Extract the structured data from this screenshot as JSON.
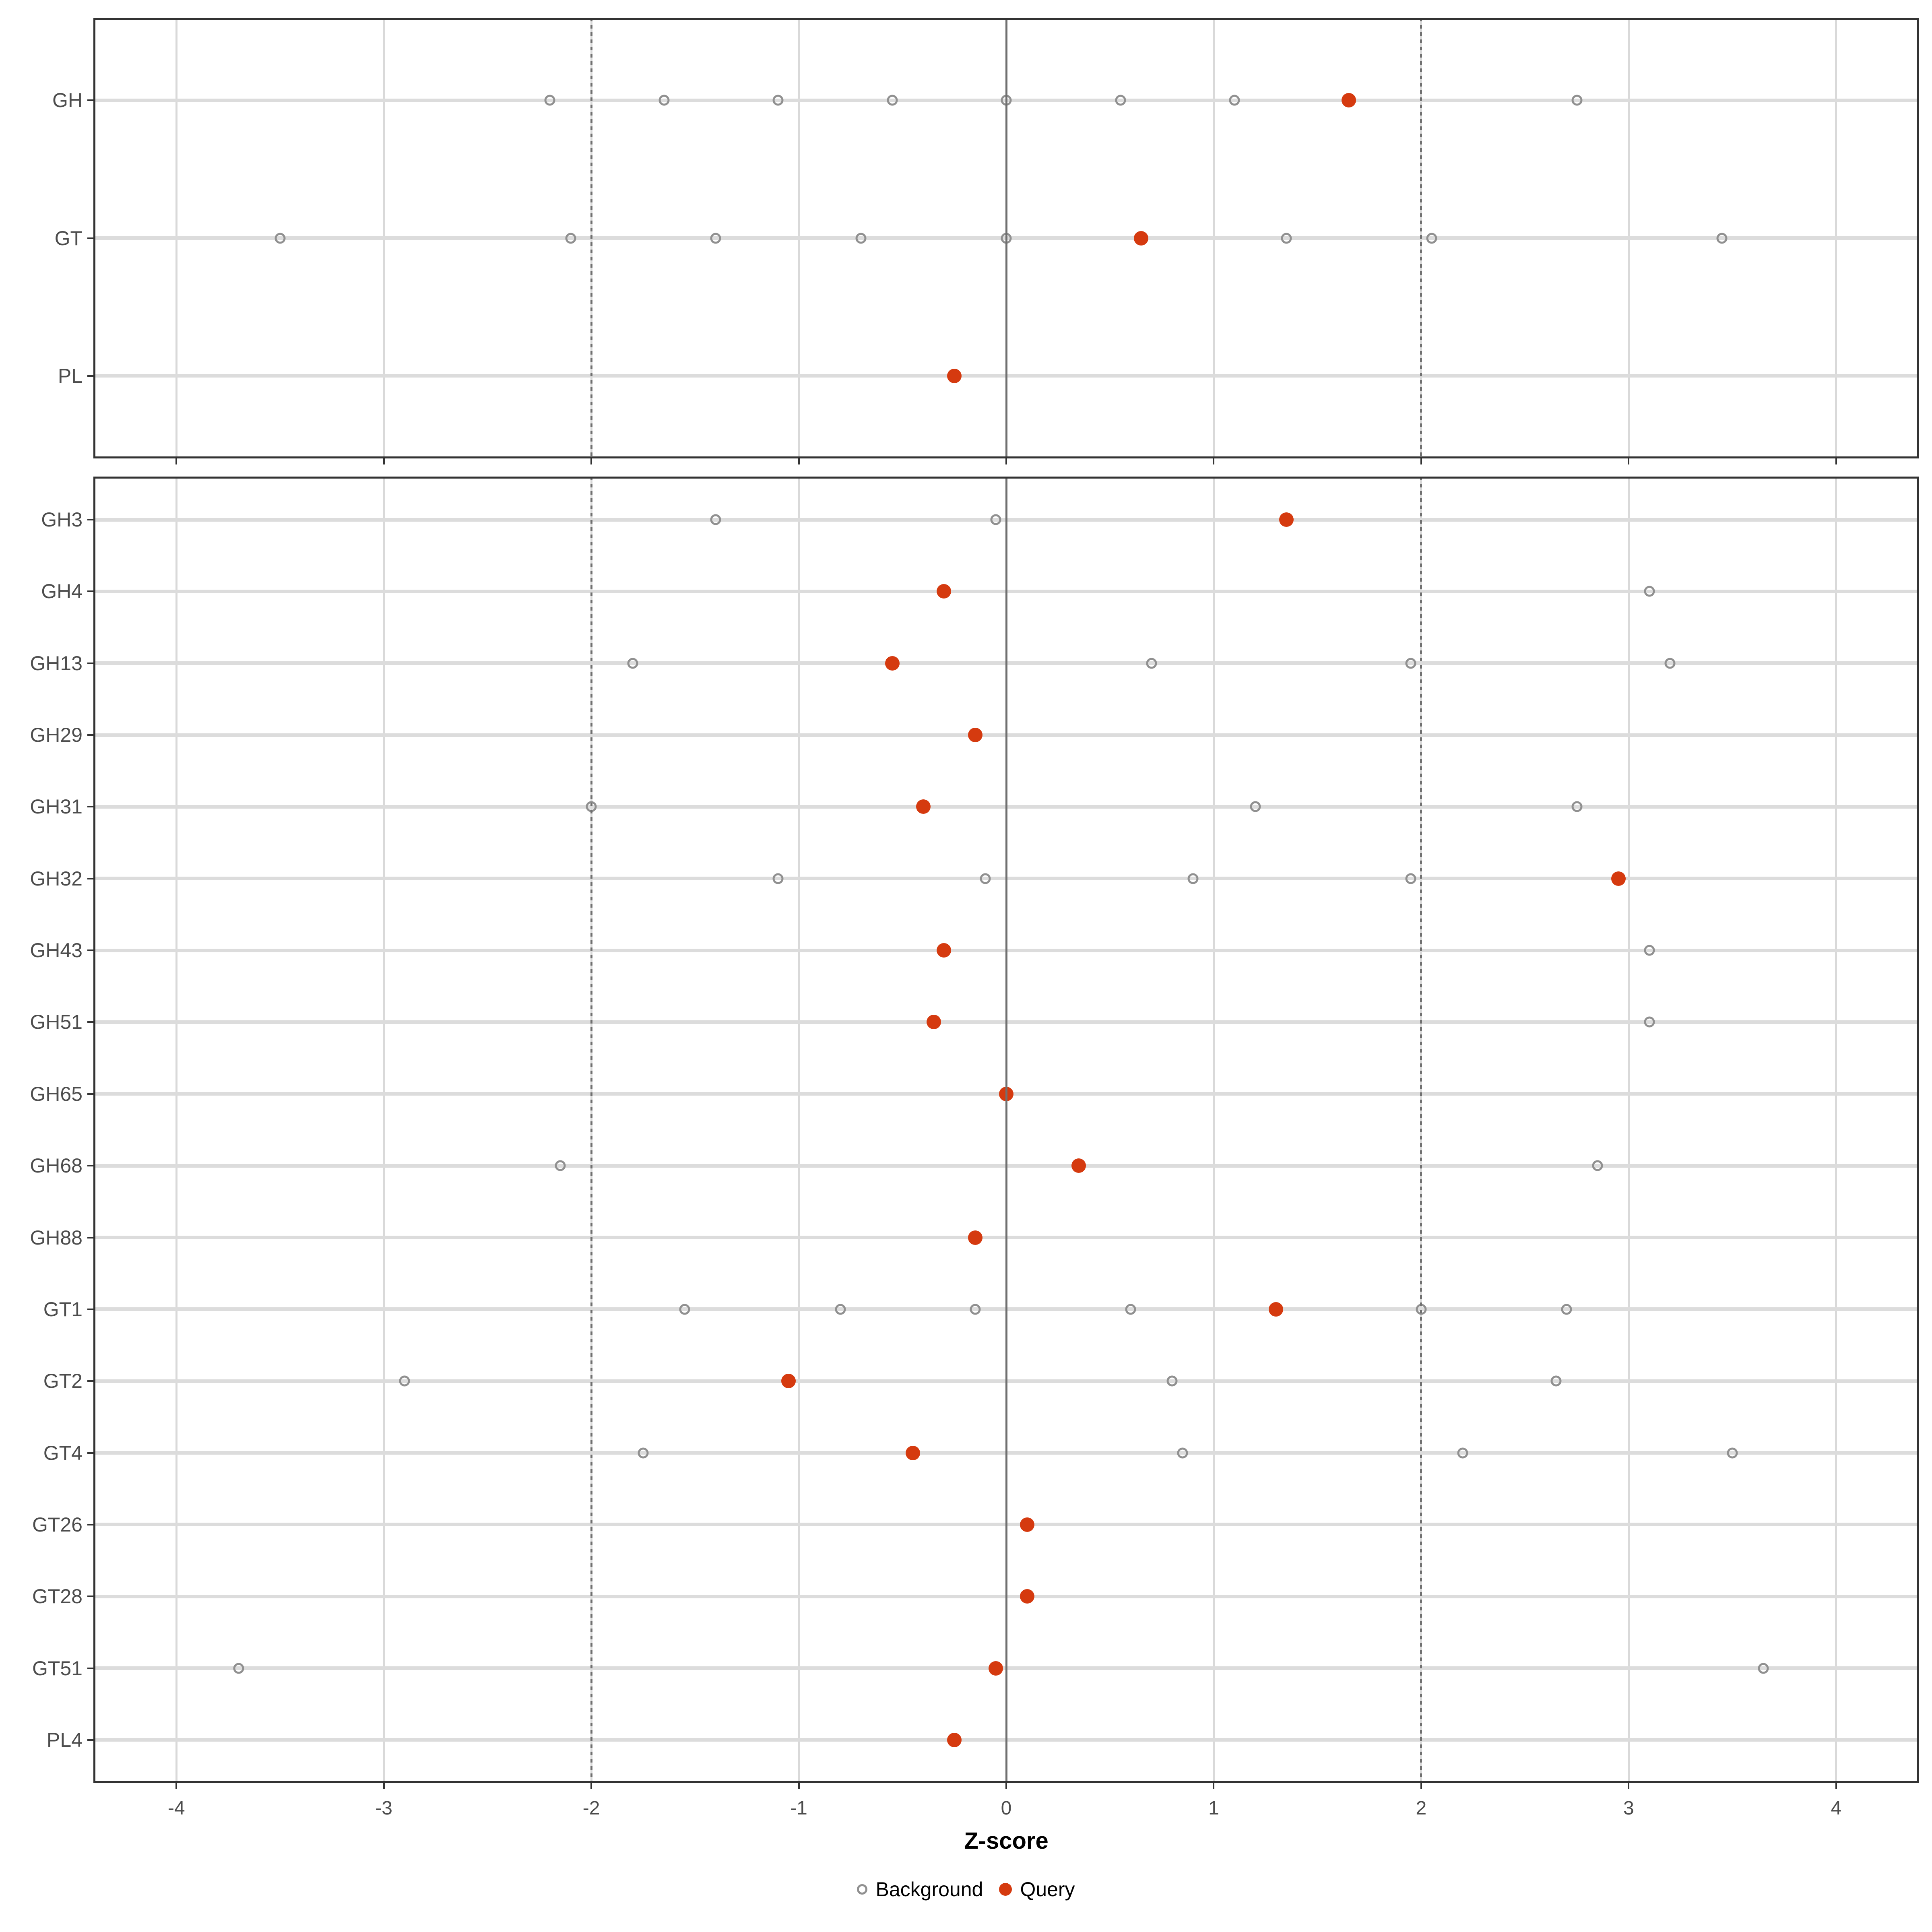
{
  "chart_data": {
    "type": "scatter",
    "xlabel": "Z-score",
    "x_ticks": [
      "-4",
      "-3",
      "-2",
      "-1",
      "0",
      "1",
      "2",
      "3",
      "4"
    ],
    "x_tick_values": [
      -4,
      -3,
      -2,
      -1,
      0,
      1,
      2,
      3,
      4
    ],
    "xlim": [
      -4.4,
      4.4
    ],
    "reference_lines": {
      "solid": [
        0
      ],
      "dotted": [
        -2,
        2
      ]
    },
    "grid": "on",
    "legend_position": "bottom",
    "legend": [
      {
        "label": "Background",
        "marker": "open-circle",
        "color": "#909090"
      },
      {
        "label": "Query",
        "marker": "filled-circle",
        "color": "#D53A0F"
      }
    ],
    "colors": {
      "query": "#D53A0F",
      "background_stroke": "#909090",
      "grid": "#D9D9D9",
      "row_band": "#DCDCDC",
      "reference": "#707070",
      "panel_border": "#333333",
      "tick_label": "#4D4D4D"
    },
    "facets": [
      {
        "name": "facet-top",
        "rows": [
          {
            "label": "GH",
            "background": [
              -2.2,
              -1.65,
              -1.1,
              -0.55,
              0.0,
              0.55,
              1.1,
              2.75
            ],
            "query": 1.65
          },
          {
            "label": "GT",
            "background": [
              -3.5,
              -2.1,
              -1.4,
              -0.7,
              0.0,
              1.35,
              2.05,
              3.45
            ],
            "query": 0.65
          },
          {
            "label": "PL",
            "background": [],
            "query": -0.25
          }
        ]
      },
      {
        "name": "facet-bottom",
        "rows": [
          {
            "label": "GH3",
            "background": [
              -1.4,
              -0.05
            ],
            "query": 1.35
          },
          {
            "label": "GH4",
            "background": [
              3.1
            ],
            "query": -0.3
          },
          {
            "label": "GH13",
            "background": [
              -1.8,
              0.7,
              1.95,
              3.2
            ],
            "query": -0.55
          },
          {
            "label": "GH29",
            "background": [],
            "query": -0.15
          },
          {
            "label": "GH31",
            "background": [
              -2.0,
              1.2,
              2.75
            ],
            "query": -0.4
          },
          {
            "label": "GH32",
            "background": [
              -1.1,
              -0.1,
              0.9,
              1.95
            ],
            "query": 2.95
          },
          {
            "label": "GH43",
            "background": [
              3.1
            ],
            "query": -0.3
          },
          {
            "label": "GH51",
            "background": [
              3.1
            ],
            "query": -0.35
          },
          {
            "label": "GH65",
            "background": [],
            "query": 0.0
          },
          {
            "label": "GH68",
            "background": [
              -2.15,
              2.85
            ],
            "query": 0.35
          },
          {
            "label": "GH88",
            "background": [],
            "query": -0.15
          },
          {
            "label": "GT1",
            "background": [
              -1.55,
              -0.8,
              -0.15,
              0.6,
              2.0,
              2.7
            ],
            "query": 1.3
          },
          {
            "label": "GT2",
            "background": [
              -2.9,
              0.8,
              2.65
            ],
            "query": -1.05
          },
          {
            "label": "GT4",
            "background": [
              -1.75,
              0.85,
              2.2,
              3.5
            ],
            "query": -0.45
          },
          {
            "label": "GT26",
            "background": [],
            "query": 0.1
          },
          {
            "label": "GT28",
            "background": [],
            "query": 0.1
          },
          {
            "label": "GT51",
            "background": [
              -3.7,
              3.65
            ],
            "query": -0.05
          },
          {
            "label": "PL4",
            "background": [],
            "query": -0.25
          }
        ]
      }
    ]
  }
}
